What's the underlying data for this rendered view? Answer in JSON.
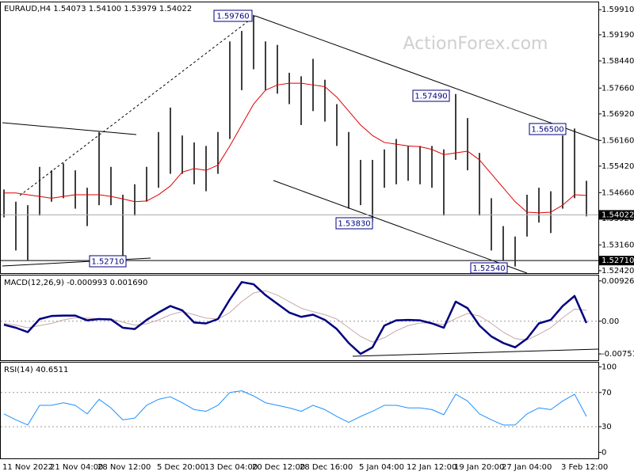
{
  "chart_data": [
    {
      "type": "hilo",
      "title": "EURAUD,H4 1.54073 1.54100 1.53979 1.54022",
      "watermark": "ActionForex.com",
      "categories": [
        "11 Nov 2022",
        null,
        null,
        null,
        "21 Nov 04:00",
        null,
        null,
        null,
        "28 Nov 12:00",
        null,
        null,
        null,
        null,
        "5 Dec 20:00",
        null,
        null,
        null,
        "13 Dec 04:00",
        null,
        null,
        null,
        "20 Dec 12:00",
        null,
        null,
        null,
        "28 Dec 16:00",
        null,
        null,
        null,
        null,
        "5 Jan 04:00",
        null,
        null,
        null,
        "12 Jan 12:00",
        null,
        null,
        null,
        "19 Jan 20:00",
        null,
        null,
        null,
        "27 Jan 04:00",
        null,
        null,
        null,
        null,
        "3 Feb 12:00",
        null,
        null
      ],
      "high": [
        1.5475,
        1.544,
        1.543,
        1.554,
        1.553,
        1.555,
        1.553,
        1.548,
        1.564,
        1.554,
        1.546,
        1.549,
        1.554,
        1.564,
        1.571,
        1.563,
        1.561,
        1.56,
        1.564,
        1.59,
        1.593,
        1.5976,
        1.59,
        1.589,
        1.581,
        1.58,
        1.585,
        1.579,
        1.572,
        1.564,
        1.556,
        1.556,
        1.559,
        1.562,
        1.56,
        1.56,
        1.56,
        1.559,
        1.5749,
        1.568,
        1.558,
        1.545,
        1.537,
        1.534,
        1.546,
        1.548,
        1.547,
        1.563,
        1.565,
        1.55
      ],
      "low": [
        1.5395,
        1.53,
        1.5271,
        1.54,
        1.544,
        1.545,
        1.542,
        1.537,
        1.543,
        1.543,
        1.5283,
        1.54,
        1.544,
        1.548,
        1.552,
        1.552,
        1.549,
        1.547,
        1.552,
        1.562,
        1.576,
        1.582,
        1.576,
        1.575,
        1.572,
        1.566,
        1.57,
        1.567,
        1.56,
        1.542,
        1.543,
        1.5383,
        1.548,
        1.549,
        1.55,
        1.549,
        1.548,
        1.54,
        1.556,
        1.553,
        1.54,
        1.53,
        1.527,
        1.5254,
        1.534,
        1.538,
        1.535,
        1.542,
        1.545,
        1.5398
      ],
      "ma": [
        1.5465,
        1.5465,
        1.546,
        1.5455,
        1.545,
        1.5455,
        1.546,
        1.546,
        1.546,
        1.5455,
        1.5448,
        1.544,
        1.5442,
        1.546,
        1.5485,
        1.5525,
        1.5535,
        1.553,
        1.5545,
        1.56,
        1.566,
        1.572,
        1.576,
        1.5775,
        1.578,
        1.578,
        1.5775,
        1.577,
        1.574,
        1.57,
        1.566,
        1.563,
        1.561,
        1.5605,
        1.56,
        1.5598,
        1.559,
        1.5575,
        1.558,
        1.5585,
        1.556,
        1.552,
        1.548,
        1.544,
        1.541,
        1.5408,
        1.541,
        1.543,
        1.546,
        1.5458
      ],
      "color": "#000000",
      "ma_color": "#e00000",
      "ylim": [
        1.5235,
        1.6012
      ],
      "yticks": [
        {
          "value": 1.5991,
          "label": "1.59910"
        },
        {
          "value": 1.5919,
          "label": "1.59190"
        },
        {
          "value": 1.5844,
          "label": "1.58440"
        },
        {
          "value": 1.5766,
          "label": "1.57660"
        },
        {
          "value": 1.5692,
          "label": "1.56920"
        },
        {
          "value": 1.5616,
          "label": "1.56160"
        },
        {
          "value": 1.5542,
          "label": "1.55420"
        },
        {
          "value": 1.5466,
          "label": "1.54660"
        },
        {
          "value": 1.5392,
          "label": "1.53920"
        },
        {
          "value": 1.5316,
          "label": "1.53160"
        },
        {
          "value": 1.5242,
          "label": "1.52420"
        }
      ],
      "annotations": [
        "1.59760",
        "1.57490",
        "1.56500",
        "1.53830",
        "1.52540"
      ],
      "level": {
        "value": 1.5271,
        "label": "1.52710"
      },
      "last": {
        "value": 1.54022,
        "label": "1.54022"
      }
    },
    {
      "type": "line",
      "title": "MACD(12,26,9) -0.000993 0.001690",
      "series": [
        {
          "color": "#00007f",
          "values": [
            -0.0008,
            -0.0015,
            -0.0025,
            0.0005,
            0.0012,
            0.0013,
            0.0013,
            0.0002,
            0.0005,
            0.0004,
            -0.0015,
            -0.0018,
            0.0003,
            0.002,
            0.0035,
            0.0025,
            -0.0003,
            -0.0005,
            0.0005,
            0.005,
            0.009,
            0.0085,
            0.006,
            0.004,
            0.002,
            0.001,
            0.0015,
            0.0003,
            -0.0018,
            -0.005,
            -0.0075,
            -0.006,
            -0.001,
            0.0002,
            0.0003,
            0.0002,
            -0.0005,
            -0.0015,
            0.0045,
            0.003,
            -0.001,
            -0.0035,
            -0.005,
            -0.006,
            -0.004,
            -0.0005,
            0.0003,
            0.0035,
            0.0058,
            -0.0004
          ]
        },
        {
          "color": "#c8a8a8",
          "values": [
            -0.0005,
            -0.0009,
            -0.0015,
            -0.001,
            -0.0005,
            0.0003,
            0.0008,
            0.0007,
            0.0006,
            0.0005,
            -0.0002,
            -0.0009,
            -0.0006,
            0.0003,
            0.0015,
            0.0022,
            0.0015,
            0.0007,
            0.0005,
            0.002,
            0.0045,
            0.0065,
            0.007,
            0.006,
            0.0045,
            0.003,
            0.0022,
            0.0015,
            0.0005,
            -0.0015,
            -0.0035,
            -0.0048,
            -0.0038,
            -0.0022,
            -0.001,
            -0.0004,
            -0.0004,
            -0.0008,
            0.0006,
            0.0018,
            0.0012,
            -0.0005,
            -0.0025,
            -0.004,
            -0.0043,
            -0.003,
            -0.0015,
            0.0008,
            0.0028,
            0.0025
          ]
        }
      ],
      "ylim": [
        -0.00896,
        0.01051
      ],
      "yticks": [
        0.009263,
        {
          "value": 0,
          "label": "0.00"
        },
        -0.007517
      ],
      "grid": true
    },
    {
      "type": "line",
      "title": "RSI(14) 40.6511",
      "series": [
        {
          "color": "#1e90ff",
          "values": [
            45,
            38,
            32,
            55,
            55,
            58,
            55,
            45,
            62,
            52,
            38,
            40,
            55,
            62,
            65,
            58,
            50,
            48,
            55,
            70,
            72,
            66,
            58,
            55,
            52,
            48,
            55,
            50,
            42,
            35,
            42,
            48,
            55,
            55,
            52,
            52,
            50,
            44,
            68,
            60,
            45,
            38,
            32,
            32,
            45,
            52,
            50,
            60,
            68,
            42
          ]
        }
      ],
      "ylim": [
        -8,
        105
      ],
      "yticks": [
        100,
        70,
        30,
        0
      ],
      "grid": true
    }
  ]
}
